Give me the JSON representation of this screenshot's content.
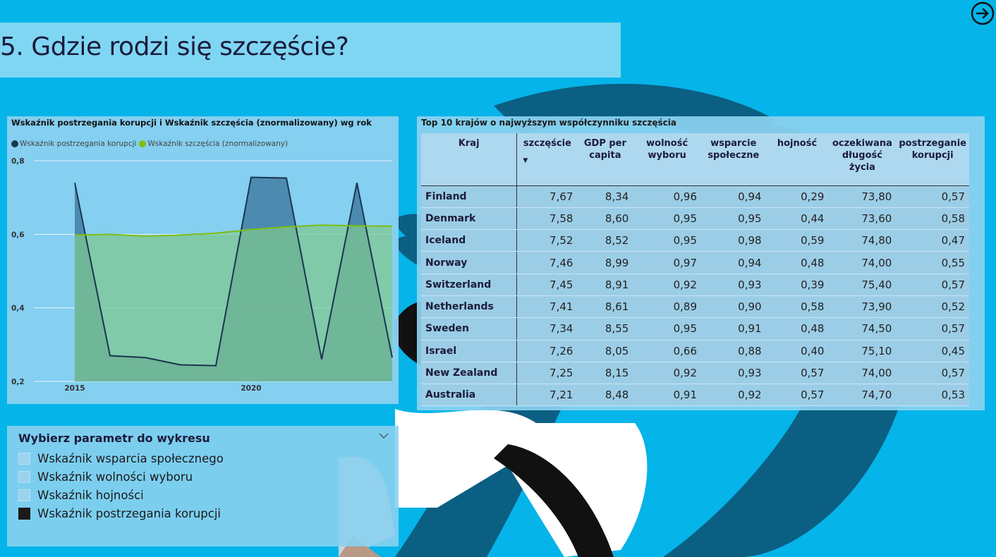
{
  "page": {
    "title": "5. Gdzie rodzi się szczęście?",
    "nav_icon": "arrow-right-circle-icon",
    "colors": {
      "background": "#05b4e8",
      "title_bar": "#7fd6f3",
      "panel": "#89d0f0"
    }
  },
  "chart": {
    "title": "Wskaźnik postrzegania korupcji i Wskaźnik szczęścia (znormalizowany) wg rok",
    "legend": [
      {
        "name": "Wskaźnik postrzegania korupcji",
        "color": "#1a3550"
      },
      {
        "name": "Wskaźnik szczęścia (znormalizowany)",
        "color": "#7dbf12"
      }
    ],
    "y_ticks": [
      "0,8",
      "0,6",
      "0,4",
      "0,2"
    ],
    "x_ticks": [
      "2015",
      "2020"
    ]
  },
  "chart_data": {
    "type": "area",
    "title": "Wskaźnik postrzegania korupcji i Wskaźnik szczęścia (znormalizowany) wg rok",
    "xlabel": "",
    "ylabel": "",
    "xlim": [
      2015,
      2024
    ],
    "ylim": [
      0.2,
      0.8
    ],
    "grid": true,
    "legend_position": "top-left",
    "x": [
      2015,
      2016,
      2017,
      2018,
      2019,
      2020,
      2021,
      2022,
      2023,
      2024
    ],
    "series": [
      {
        "name": "Wskaźnik postrzegania korupcji",
        "color": "#1a3550",
        "fill": "#4a86ac",
        "values": [
          0.74,
          0.27,
          0.265,
          0.245,
          0.243,
          0.755,
          0.753,
          0.26,
          0.74,
          0.265
        ]
      },
      {
        "name": "Wskaźnik szczęścia (znormalizowany)",
        "color": "#7dbf12",
        "fill": "#7ec88f",
        "values": [
          0.598,
          0.6,
          0.595,
          0.598,
          0.603,
          0.613,
          0.62,
          0.625,
          0.623,
          0.622
        ]
      }
    ]
  },
  "table": {
    "title": "Top 10 krajów o najwyższym współczynniku szczęścia",
    "sort_icon": "sort-descending-icon",
    "headers": [
      "Kraj",
      "szczęście",
      "GDP per capita",
      "wolność wyboru",
      "wsparcie społeczne",
      "hojność",
      "oczekiwana długość życia",
      "postrzeganie korupcji"
    ],
    "rows": [
      [
        "Finland",
        "7,67",
        "8,34",
        "0,96",
        "0,94",
        "0,29",
        "73,80",
        "0,57"
      ],
      [
        "Denmark",
        "7,58",
        "8,60",
        "0,95",
        "0,95",
        "0,44",
        "73,60",
        "0,58"
      ],
      [
        "Iceland",
        "7,52",
        "8,52",
        "0,95",
        "0,98",
        "0,59",
        "74,80",
        "0,47"
      ],
      [
        "Norway",
        "7,46",
        "8,99",
        "0,97",
        "0,94",
        "0,48",
        "74,00",
        "0,55"
      ],
      [
        "Switzerland",
        "7,45",
        "8,91",
        "0,92",
        "0,93",
        "0,39",
        "75,40",
        "0,57"
      ],
      [
        "Netherlands",
        "7,41",
        "8,61",
        "0,89",
        "0,90",
        "0,58",
        "73,90",
        "0,52"
      ],
      [
        "Sweden",
        "7,34",
        "8,55",
        "0,95",
        "0,91",
        "0,48",
        "74,50",
        "0,57"
      ],
      [
        "Israel",
        "7,26",
        "8,05",
        "0,66",
        "0,88",
        "0,40",
        "75,10",
        "0,45"
      ],
      [
        "New Zealand",
        "7,25",
        "8,15",
        "0,92",
        "0,93",
        "0,57",
        "74,00",
        "0,57"
      ],
      [
        "Australia",
        "7,21",
        "8,48",
        "0,91",
        "0,92",
        "0,57",
        "74,70",
        "0,53"
      ]
    ]
  },
  "slicer": {
    "title": "Wybierz parametr do wykresu",
    "chevron_icon": "chevron-down-icon",
    "options": [
      {
        "label": "Wskaźnik wsparcia społecznego",
        "checked": false
      },
      {
        "label": "Wskaźnik wolności wyboru",
        "checked": false
      },
      {
        "label": "Wskaźnik hojności",
        "checked": false
      },
      {
        "label": "Wskaźnik postrzegania korupcji",
        "checked": true
      }
    ]
  }
}
